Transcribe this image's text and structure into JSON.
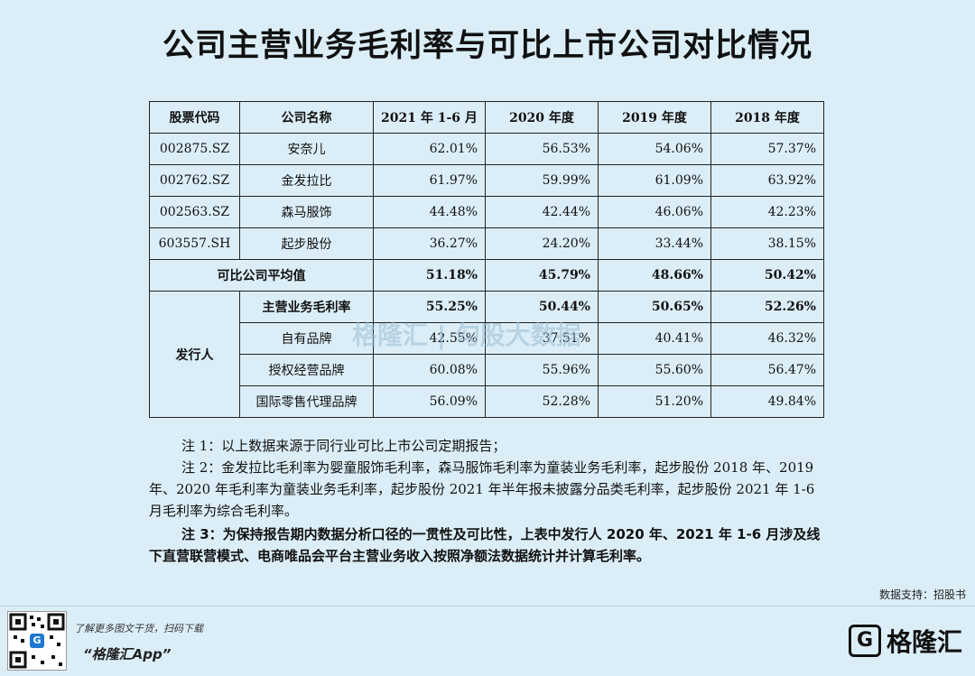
{
  "title": "公司主营业务毛利率与可比上市公司对比情况",
  "table": {
    "headers": [
      "股票代码",
      "公司名称",
      "2021 年 1-6 月",
      "2020 年度",
      "2019 年度",
      "2018 年度"
    ],
    "rows": [
      {
        "code": "002875.SZ",
        "name": "安奈儿",
        "v": [
          "62.01%",
          "56.53%",
          "54.06%",
          "57.37%"
        ]
      },
      {
        "code": "002762.SZ",
        "name": "金发拉比",
        "v": [
          "61.97%",
          "59.99%",
          "61.09%",
          "63.92%"
        ]
      },
      {
        "code": "002563.SZ",
        "name": "森马服饰",
        "v": [
          "44.48%",
          "42.44%",
          "46.06%",
          "42.23%"
        ]
      },
      {
        "code": "603557.SH",
        "name": "起步股份",
        "v": [
          "36.27%",
          "24.20%",
          "33.44%",
          "38.15%"
        ]
      }
    ],
    "average": {
      "label": "可比公司平均值",
      "v": [
        "51.18%",
        "45.79%",
        "48.66%",
        "50.42%"
      ]
    },
    "issuer": {
      "label": "发行人",
      "rows": [
        {
          "name": "主营业务毛利率",
          "v": [
            "55.25%",
            "50.44%",
            "50.65%",
            "52.26%"
          ]
        },
        {
          "name": "自有品牌",
          "v": [
            "42.55%",
            "37.51%",
            "40.41%",
            "46.32%"
          ]
        },
        {
          "name": "授权经营品牌",
          "v": [
            "60.08%",
            "55.96%",
            "55.60%",
            "56.47%"
          ]
        },
        {
          "name": "国际零售代理品牌",
          "v": [
            "56.09%",
            "52.28%",
            "51.20%",
            "49.84%"
          ]
        }
      ]
    }
  },
  "notes": {
    "n1": "注 1：以上数据来源于同行业可比上市公司定期报告；",
    "n2": "注 2：金发拉比毛利率为婴童服饰毛利率，森马服饰毛利率为童装业务毛利率，起步股份 2018 年、2019 年、2020 年毛利率为童装业务毛利率，起步股份 2021 年半年报未披露分品类毛利率，起步股份 2021 年 1-6 月毛利率为综合毛利率。",
    "n3": "注 3：为保持报告期内数据分析口径的一贯性及可比性，上表中发行人 2020 年、2021 年 1-6 月涉及线下直营联营模式、电商唯品会平台主营业务收入按照净额法数据统计并计算毛利率。"
  },
  "source": "数据支持：招股书",
  "watermark": "格隆汇 | 勾股大数据",
  "footer": {
    "line1": "了解更多图文干货，扫码下载",
    "line2": "“格隆汇App”",
    "qr_glyph": "G",
    "logo_mark": "G",
    "logo_text": "格隆汇"
  }
}
